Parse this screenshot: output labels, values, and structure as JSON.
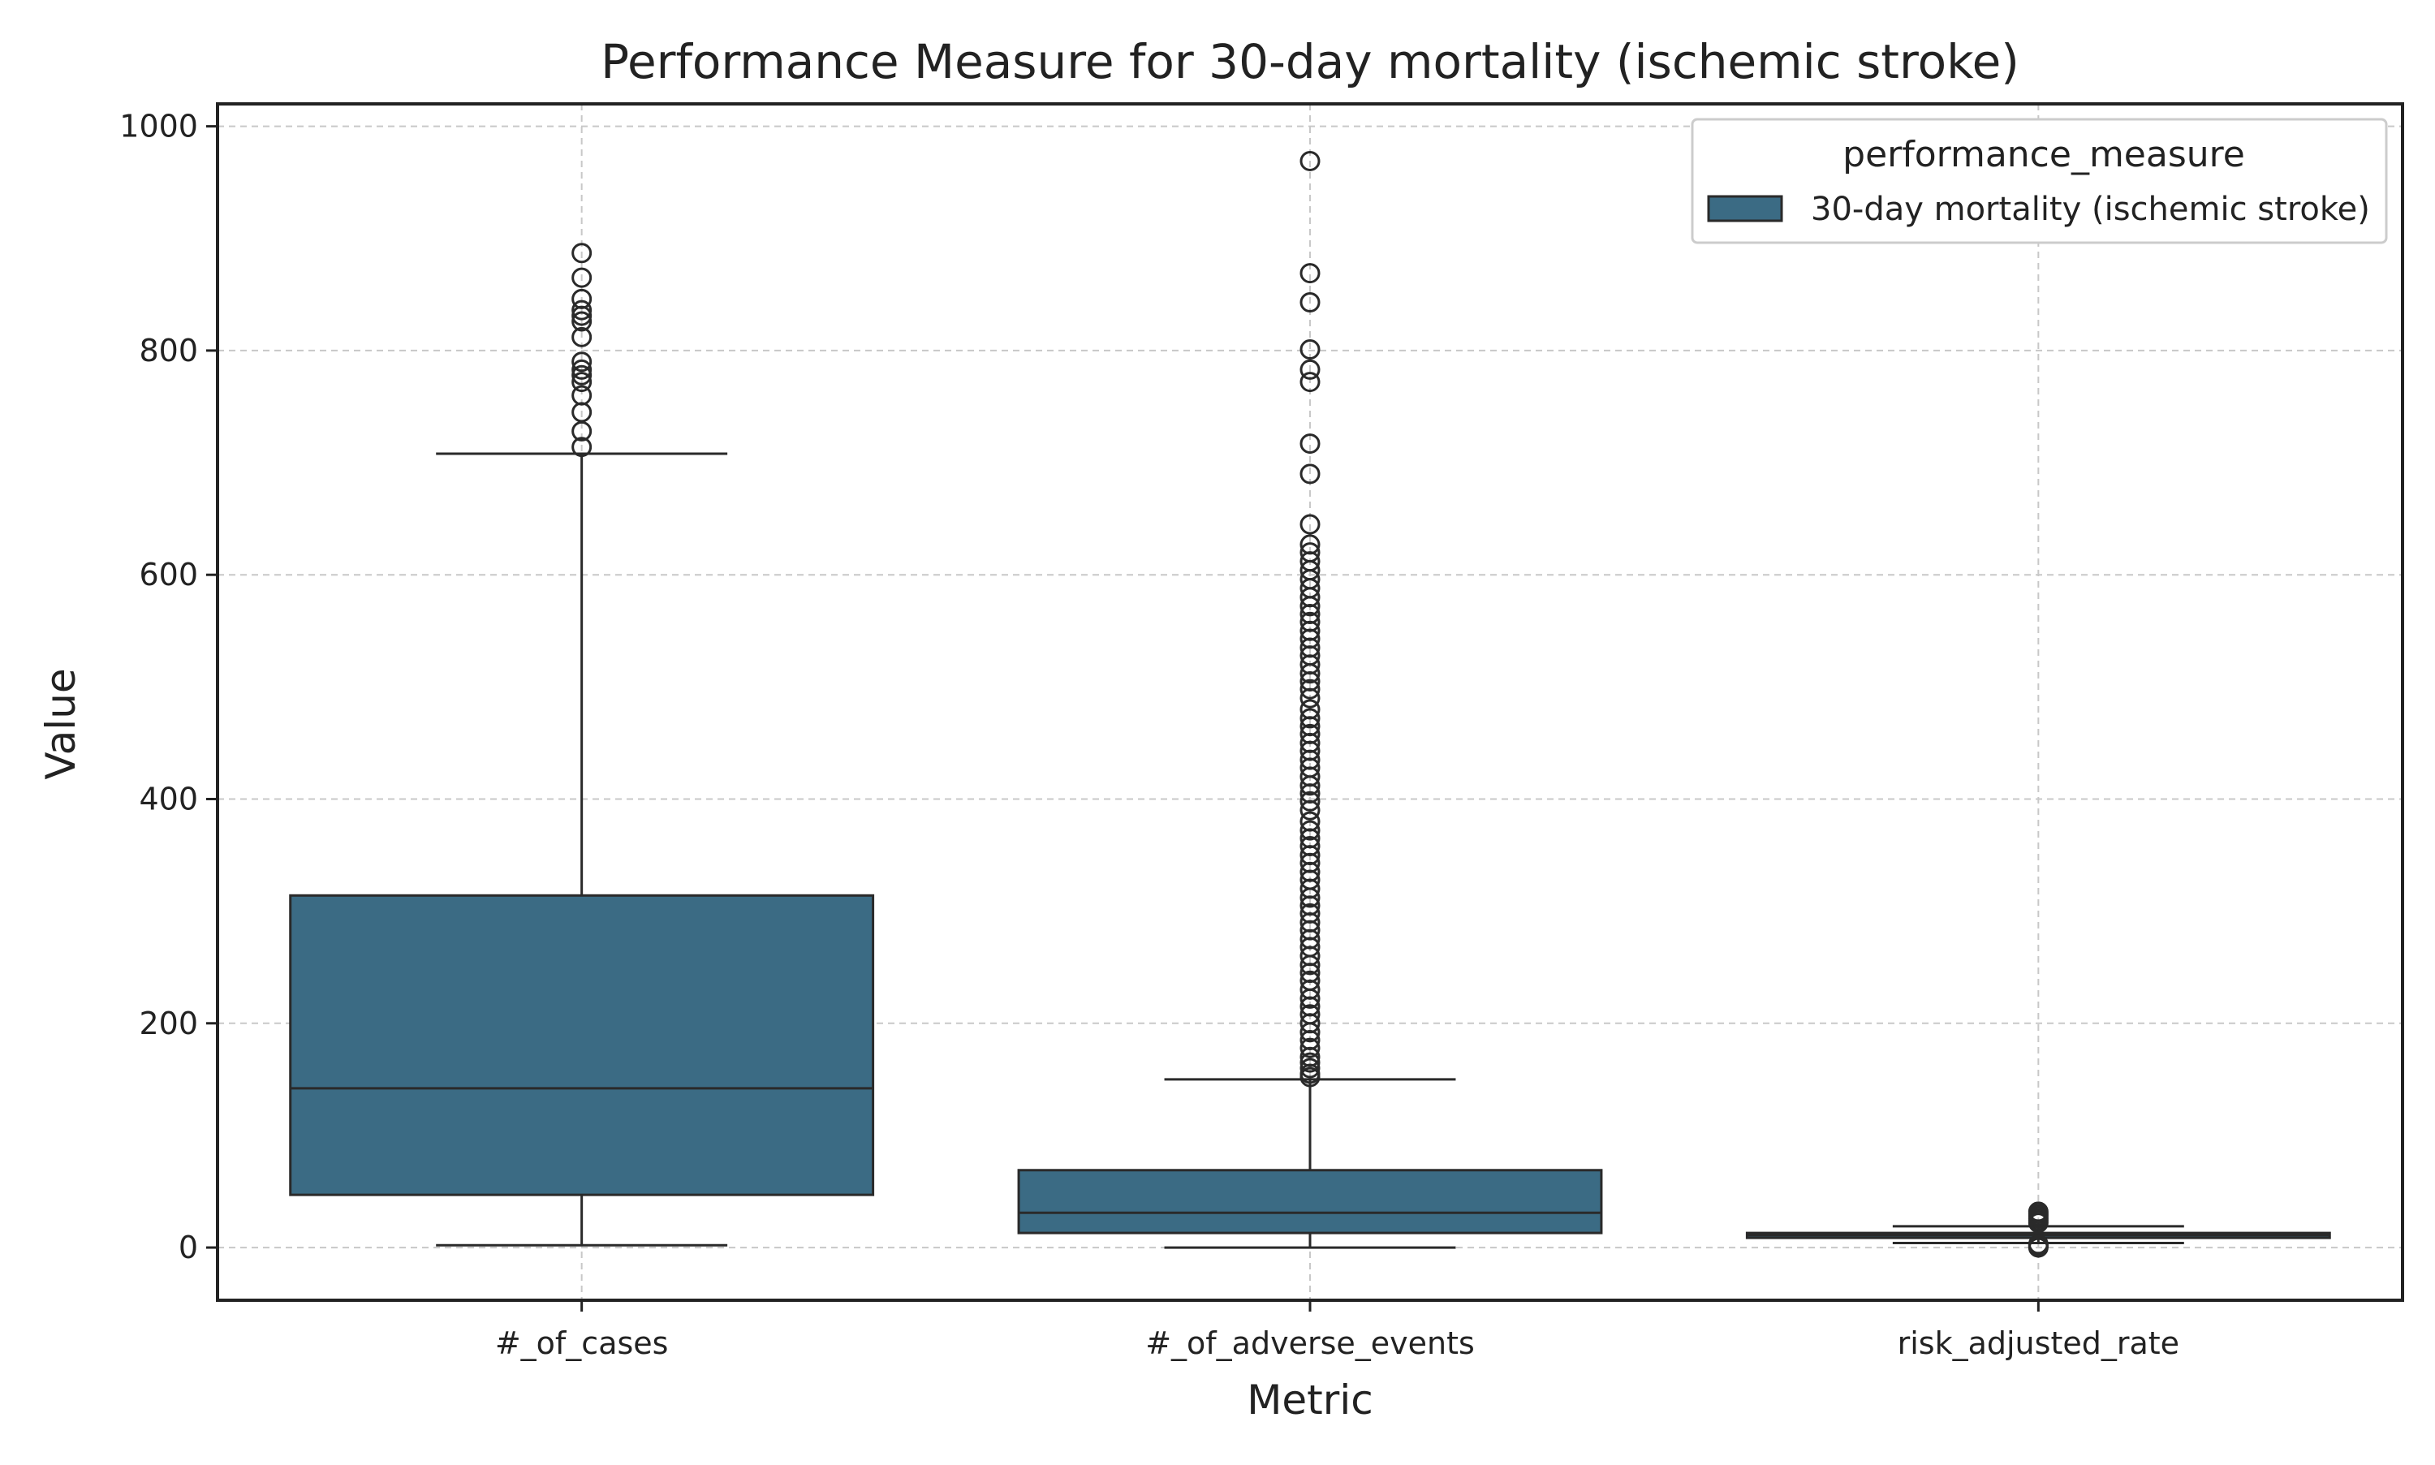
{
  "colors": {
    "box_fill": "#3b6b84",
    "box_edge": "#2a2a2a",
    "grid": "#c8c8c8",
    "axes": "#222222",
    "text": "#222222"
  },
  "chart_data": {
    "type": "box",
    "title": "Performance Measure for 30-day mortality (ischemic stroke)",
    "xlabel": "Metric",
    "ylabel": "Value",
    "ylim": [
      -47,
      1020
    ],
    "yticks": [
      0,
      200,
      400,
      600,
      800,
      1000
    ],
    "categories": [
      "#_of_cases",
      "#_of_adverse_events",
      "risk_adjusted_rate"
    ],
    "grid": true,
    "legend": {
      "title": "performance_measure",
      "entries": [
        "30-day mortality (ischemic stroke)"
      ],
      "position": "top-right"
    },
    "series": [
      {
        "name": "30-day mortality (ischemic stroke)",
        "boxes": [
          {
            "category": "#_of_cases",
            "whisker_low": 2,
            "q1": 47,
            "median": 142,
            "q3": 314,
            "whisker_high": 708,
            "outliers": [
              714,
              728,
              745,
              760,
              772,
              778,
              783,
              790,
              812,
              826,
              831,
              836,
              846,
              865,
              887
            ]
          },
          {
            "category": "#_of_adverse_events",
            "whisker_low": 0,
            "q1": 13,
            "median": 31,
            "q3": 69,
            "whisker_high": 150,
            "outliers": [
              152,
              155,
              160,
              165,
              170,
              178,
              185,
              192,
              200,
              208,
              215,
              222,
              230,
              238,
              245,
              252,
              260,
              268,
              275,
              283,
              290,
              298,
              305,
              312,
              320,
              328,
              335,
              343,
              350,
              358,
              365,
              372,
              380,
              390,
              398,
              405,
              412,
              420,
              428,
              435,
              443,
              450,
              458,
              465,
              472,
              480,
              490,
              498,
              505,
              512,
              520,
              528,
              535,
              543,
              550,
              558,
              565,
              572,
              580,
              588,
              596,
              604,
              612,
              620,
              627,
              645,
              690,
              717,
              772,
              783,
              801,
              843,
              869,
              969
            ]
          },
          {
            "category": "risk_adjusted_rate",
            "whisker_low": 4,
            "q1": 9,
            "median": 11,
            "q3": 13,
            "whisker_high": 19,
            "outliers": [
              0,
              1,
              2,
              3,
              22,
              24,
              26,
              28,
              30,
              32
            ]
          }
        ]
      }
    ]
  }
}
